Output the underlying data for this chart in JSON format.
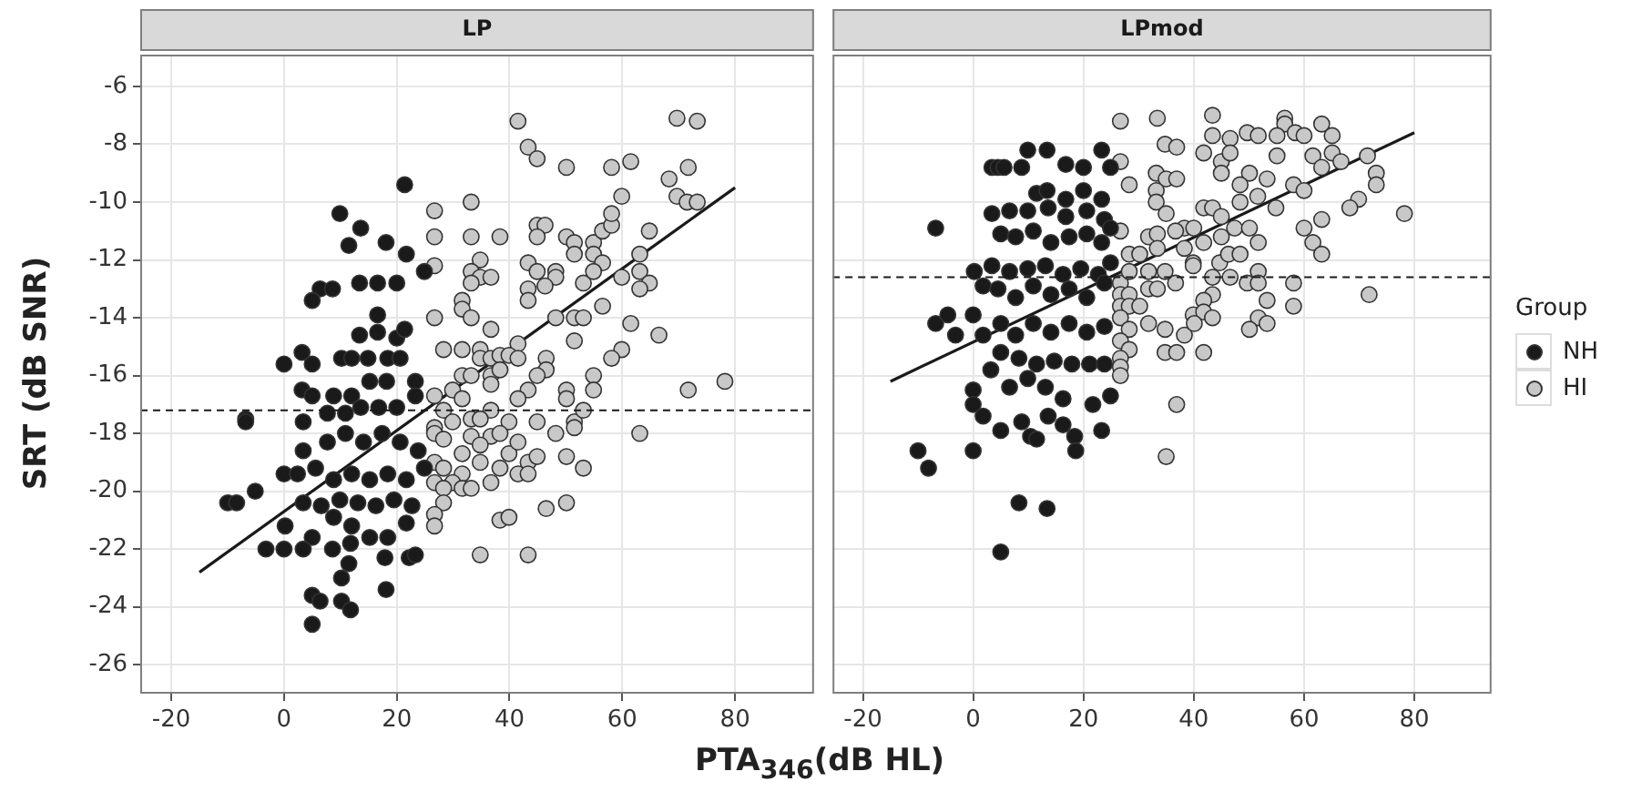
{
  "chart_data": [
    {
      "type": "scatter",
      "title": "LP",
      "xlabel": "PTA$_{346}$(dB HL)",
      "ylabel": "SRT (dB SNR)",
      "xlim": [
        -25.5,
        94
      ],
      "ylim": [
        -27,
        -4.9
      ],
      "xticks": [
        -20,
        0,
        20,
        40,
        60,
        80
      ],
      "yticks": [
        -26,
        -24,
        -22,
        -20,
        -18,
        -16,
        -14,
        -12,
        -10,
        -8,
        -6
      ],
      "grid": true,
      "marker": "circle",
      "legend": "right",
      "legend_title": "Group",
      "series": [
        {
          "name": "NH",
          "color": "#1a1a1a",
          "x": [
            21.4,
            9.9,
            13.6,
            11.5,
            18.1,
            21.7,
            24.9,
            6.4,
            8.6,
            5.0,
            13.4,
            16.6,
            20.0,
            16.6,
            13.4,
            16.6,
            20.0,
            21.4,
            0,
            3.2,
            5.0,
            10.2,
            12.0,
            14.9,
            18.4,
            20.6,
            3.2,
            5.0,
            8.8,
            12.0,
            15.2,
            18.2,
            23.3,
            -6.8,
            -6.8,
            3.4,
            7.7,
            10.9,
            13.6,
            16.8,
            20.0,
            23.3,
            3.4,
            7.7,
            10.9,
            14.1,
            17.4,
            20.6,
            23.8,
            0,
            2.4,
            5.6,
            8.8,
            12.0,
            15.2,
            18.4,
            21.7,
            24.9,
            -5.1,
            -10.0,
            -8.4,
            3.4,
            6.6,
            9.9,
            13.1,
            16.3,
            19.5,
            22.7,
            0.2,
            5.0,
            8.8,
            12.0,
            15.2,
            18.4,
            21.7,
            -3.2,
            0,
            3.4,
            8.6,
            11.8,
            11.5,
            17.9,
            22.2,
            23.3,
            10.2,
            18.1,
            5.0,
            6.4,
            10.2,
            11.8,
            5.0
          ],
          "values": [
            -9.4,
            -10.4,
            -10.9,
            -11.5,
            -11.4,
            -11.8,
            -12.4,
            -13.0,
            -13.0,
            -13.4,
            -12.8,
            -12.8,
            -12.8,
            -13.9,
            -14.6,
            -14.5,
            -14.7,
            -14.4,
            -15.6,
            -15.2,
            -15.6,
            -15.4,
            -15.4,
            -15.4,
            -15.4,
            -15.4,
            -16.5,
            -16.7,
            -16.7,
            -16.7,
            -16.2,
            -16.2,
            -16.2,
            -17.5,
            -17.6,
            -17.6,
            -17.3,
            -17.3,
            -17.1,
            -17.1,
            -17.1,
            -16.7,
            -18.6,
            -18.3,
            -18.0,
            -18.3,
            -18.0,
            -18.3,
            -18.6,
            -19.4,
            -19.4,
            -19.2,
            -19.6,
            -19.4,
            -19.6,
            -19.4,
            -19.6,
            -19.2,
            -20.0,
            -20.4,
            -20.4,
            -20.4,
            -20.5,
            -20.3,
            -20.4,
            -20.5,
            -20.3,
            -20.5,
            -21.2,
            -21.6,
            -20.9,
            -21.2,
            -21.6,
            -21.6,
            -21.1,
            -22.0,
            -22.0,
            -22.0,
            -22.0,
            -21.8,
            -22.5,
            -22.3,
            -22.3,
            -22.2,
            -23.0,
            -23.4,
            -23.6,
            -23.8,
            -23.8,
            -24.1,
            -24.6
          ]
        },
        {
          "name": "HI",
          "color": "#c8c8c8",
          "x": [
            41.5,
            43.3,
            44.9,
            50.1,
            58.1,
            61.5,
            69.7,
            73.3,
            71.7,
            68.3,
            69.7,
            71.5,
            73.3,
            59.9,
            26.7,
            33.2,
            26.7,
            33.2,
            38.3,
            44.9,
            46.3,
            44.9,
            50.1,
            51.5,
            54.9,
            56.5,
            58.1,
            58.1,
            64.8,
            51.5,
            54.9,
            56.5,
            63.1,
            26.7,
            34.8,
            33.2,
            34.8,
            36.7,
            33.2,
            43.3,
            44.9,
            48.2,
            48.2,
            46.3,
            43.3,
            43.3,
            53.1,
            54.9,
            59.9,
            63.1,
            64.8,
            63.1,
            31.6,
            31.6,
            33.2,
            26.7,
            48.2,
            51.5,
            53.1,
            56.5,
            61.5,
            66.5,
            36.7,
            41.5,
            51.5,
            28.3,
            31.6,
            34.8,
            34.8,
            36.7,
            38.3,
            39.9,
            41.5,
            46.5,
            46.5,
            59.9,
            58.1,
            31.6,
            33.2,
            36.7,
            38.3,
            36.7,
            44.9,
            43.3,
            41.5,
            50.1,
            50.1,
            54.9,
            54.9,
            71.7,
            78.2,
            26.7,
            29.9,
            28.3,
            31.6,
            36.7,
            33.2,
            34.8,
            26.7,
            29.9,
            39.9,
            44.9,
            51.5,
            53.1,
            51.5,
            63.1,
            26.7,
            28.3,
            33.2,
            36.7,
            38.3,
            48.2,
            31.6,
            34.8,
            39.9,
            41.5,
            43.3,
            44.9,
            50.1,
            53.1,
            26.7,
            28.3,
            31.6,
            34.8,
            38.3,
            41.5,
            43.3,
            26.7,
            29.9,
            28.3,
            31.6,
            33.2,
            36.7,
            28.3,
            26.7,
            26.7,
            38.3,
            39.9,
            46.5,
            50.1,
            34.8,
            43.3
          ],
          "values": [
            -7.2,
            -8.1,
            -8.5,
            -8.8,
            -8.8,
            -8.6,
            -7.1,
            -7.2,
            -8.8,
            -9.2,
            -9.8,
            -10.0,
            -10.0,
            -9.8,
            -10.3,
            -10.0,
            -11.2,
            -11.2,
            -11.2,
            -10.8,
            -10.8,
            -11.2,
            -11.2,
            -11.4,
            -11.4,
            -11.0,
            -10.8,
            -10.4,
            -11.0,
            -11.8,
            -11.8,
            -12.1,
            -11.8,
            -12.2,
            -12.0,
            -12.4,
            -12.6,
            -12.6,
            -12.8,
            -12.1,
            -12.4,
            -12.4,
            -12.6,
            -12.9,
            -13.0,
            -13.4,
            -12.8,
            -12.4,
            -12.6,
            -12.4,
            -12.8,
            -13.0,
            -13.4,
            -13.7,
            -14.0,
            -14.0,
            -14.0,
            -14.0,
            -14.0,
            -13.6,
            -14.2,
            -14.6,
            -14.4,
            -14.9,
            -14.8,
            -15.1,
            -15.1,
            -15.1,
            -15.4,
            -15.4,
            -15.3,
            -15.3,
            -15.4,
            -15.4,
            -15.8,
            -15.1,
            -15.4,
            -16.0,
            -16.0,
            -16.0,
            -15.8,
            -16.3,
            -16.0,
            -16.5,
            -16.8,
            -16.5,
            -16.8,
            -16.0,
            -16.5,
            -16.5,
            -16.2,
            -16.7,
            -16.5,
            -17.2,
            -16.8,
            -17.2,
            -17.5,
            -17.5,
            -17.8,
            -17.6,
            -17.6,
            -17.6,
            -17.6,
            -17.2,
            -17.8,
            -18.0,
            -18.0,
            -18.2,
            -18.1,
            -18.1,
            -18.0,
            -18.0,
            -18.7,
            -18.4,
            -18.7,
            -18.3,
            -19.0,
            -18.8,
            -18.8,
            -19.2,
            -19.0,
            -19.2,
            -19.4,
            -19.0,
            -19.2,
            -19.4,
            -19.4,
            -19.7,
            -19.7,
            -19.9,
            -19.9,
            -19.9,
            -19.7,
            -20.4,
            -20.8,
            -21.2,
            -21.0,
            -20.9,
            -20.6,
            -20.4,
            -22.2,
            -22.2
          ]
        },
        {
          "type": "line",
          "marker": "none",
          "color": "#1a1a1a",
          "x": [
            -15,
            80
          ],
          "values": [
            -22.8,
            -9.5
          ]
        }
      ],
      "ref_lines": [
        {
          "axis": "y",
          "value": -17.2,
          "line_style": "dashed",
          "color": "#1a1a1a"
        }
      ]
    },
    {
      "type": "scatter",
      "title": "LPmod",
      "xlim": [
        -25.5,
        94
      ],
      "ylim": [
        -27,
        -4.9
      ],
      "xticks": [
        -20,
        0,
        20,
        40,
        60,
        80
      ],
      "yticks": [
        -26,
        -24,
        -22,
        -20,
        -18,
        -16,
        -14,
        -12,
        -10,
        -8,
        -6
      ],
      "tick_labels": "x",
      "grid": true,
      "marker": "circle",
      "series": [
        {
          "color": "#1a1a1a",
          "x": [
            -6.8,
            3.4,
            4.5,
            5.6,
            8.8,
            9.9,
            13.4,
            16.8,
            20.0,
            23.3,
            24.9,
            11.5,
            13.4,
            16.8,
            20.0,
            23.3,
            3.4,
            6.6,
            9.9,
            13.6,
            16.8,
            20.6,
            23.8,
            5.0,
            7.7,
            10.9,
            14.1,
            17.4,
            20.6,
            23.3,
            24.9,
            0.2,
            3.4,
            6.6,
            9.9,
            13.1,
            16.3,
            19.5,
            22.7,
            24.9,
            1.8,
            4.5,
            7.7,
            10.9,
            14.1,
            17.4,
            20.6,
            23.8,
            5.0,
            7.7,
            10.9,
            14.1,
            17.4,
            20.6,
            23.8,
            5.0,
            8.3,
            11.5,
            14.7,
            17.9,
            21.1,
            23.8,
            3.2,
            6.6,
            9.9,
            13.1,
            16.3,
            21.7,
            24.9,
            0,
            0,
            1.8,
            5.0,
            8.8,
            10.4,
            11.5,
            13.6,
            16.3,
            18.4,
            18.6,
            23.3,
            -6.8,
            -4.6,
            -3.2,
            0,
            1.8,
            -10.0,
            -8.1,
            0,
            8.3,
            13.4,
            5.0
          ],
          "values": [
            -10.9,
            -8.8,
            -8.8,
            -8.8,
            -8.8,
            -8.2,
            -8.2,
            -8.7,
            -8.8,
            -8.2,
            -8.8,
            -9.7,
            -9.6,
            -9.9,
            -9.6,
            -9.9,
            -10.4,
            -10.3,
            -10.3,
            -10.2,
            -10.5,
            -10.3,
            -10.6,
            -11.1,
            -11.2,
            -11.0,
            -11.4,
            -11.2,
            -11.1,
            -11.4,
            -10.9,
            -12.4,
            -12.2,
            -12.4,
            -12.3,
            -12.2,
            -12.5,
            -12.3,
            -12.5,
            -12.1,
            -12.9,
            -13.0,
            -13.3,
            -12.9,
            -13.2,
            -13.0,
            -13.3,
            -12.8,
            -14.2,
            -14.6,
            -14.2,
            -14.5,
            -14.2,
            -14.5,
            -14.3,
            -15.2,
            -15.4,
            -15.6,
            -15.5,
            -15.6,
            -15.6,
            -15.6,
            -15.8,
            -16.4,
            -16.1,
            -16.4,
            -16.8,
            -17.0,
            -16.7,
            -16.5,
            -17.0,
            -17.4,
            -17.9,
            -17.6,
            -18.1,
            -18.2,
            -17.4,
            -17.7,
            -18.1,
            -18.6,
            -17.9,
            -14.2,
            -13.9,
            -14.6,
            -13.9,
            -14.6,
            -18.6,
            -19.2,
            -18.6,
            -20.4,
            -20.6,
            -22.1
          ]
        },
        {
          "color": "#c8c8c8",
          "x": [
            26.7,
            33.4,
            43.4,
            56.5,
            56.5,
            63.2,
            65.1,
            49.7,
            51.7,
            55.1,
            58.4,
            60.0,
            34.8,
            36.9,
            41.8,
            43.4,
            46.6,
            45.0,
            46.6,
            55.1,
            61.6,
            63.2,
            65.1,
            66.7,
            71.5,
            73.1,
            26.7,
            28.3,
            33.2,
            35.0,
            36.9,
            45.0,
            50.1,
            53.3,
            48.4,
            58.1,
            60.0,
            73.1,
            33.2,
            33.2,
            41.8,
            43.4,
            48.4,
            51.6,
            54.9,
            69.9,
            68.3,
            78.2,
            35.0,
            38.3,
            40.0,
            45.0,
            47.4,
            50.1,
            26.7,
            31.8,
            33.4,
            36.7,
            41.8,
            45.0,
            51.7,
            60.0,
            63.2,
            61.6,
            63.2,
            28.3,
            30.2,
            33.4,
            38.3,
            39.9,
            44.7,
            46.3,
            48.4,
            26.7,
            28.3,
            31.8,
            34.8,
            36.7,
            39.9,
            43.4,
            46.6,
            49.7,
            51.7,
            51.7,
            58.1,
            71.8,
            26.7,
            28.3,
            31.8,
            33.4,
            43.4,
            26.7,
            28.3,
            30.2,
            41.8,
            53.3,
            58.1,
            26.7,
            31.8,
            39.9,
            41.8,
            43.4,
            51.7,
            53.3,
            50.1,
            28.3,
            26.7,
            34.8,
            38.3,
            40.1,
            28.3,
            26.7,
            26.7,
            34.8,
            36.9,
            41.8,
            26.7,
            36.9,
            35.0
          ],
          "values": [
            -7.2,
            -7.1,
            -7.0,
            -7.1,
            -7.3,
            -7.3,
            -7.7,
            -7.6,
            -7.7,
            -7.7,
            -7.6,
            -7.7,
            -8.0,
            -8.1,
            -8.3,
            -7.7,
            -7.8,
            -8.6,
            -8.3,
            -8.4,
            -8.4,
            -8.8,
            -8.3,
            -8.6,
            -8.4,
            -9.0,
            -8.6,
            -9.4,
            -9.0,
            -9.2,
            -9.2,
            -9.0,
            -9.0,
            -9.2,
            -9.4,
            -9.4,
            -9.6,
            -9.4,
            -9.6,
            -10.0,
            -10.2,
            -10.2,
            -10.0,
            -9.8,
            -10.2,
            -9.9,
            -10.2,
            -10.4,
            -10.4,
            -10.9,
            -10.9,
            -10.5,
            -10.9,
            -10.9,
            -11.0,
            -11.2,
            -11.1,
            -11.0,
            -11.4,
            -11.2,
            -11.4,
            -10.9,
            -10.6,
            -11.4,
            -11.8,
            -11.8,
            -11.8,
            -11.6,
            -11.6,
            -12.1,
            -12.1,
            -11.8,
            -11.8,
            -12.8,
            -12.4,
            -12.4,
            -12.4,
            -12.8,
            -12.2,
            -12.6,
            -12.6,
            -12.8,
            -12.4,
            -12.8,
            -12.8,
            -13.2,
            -13.2,
            -13.2,
            -13.0,
            -13.0,
            -13.2,
            -13.6,
            -13.6,
            -13.6,
            -13.4,
            -13.4,
            -13.6,
            -14.0,
            -14.2,
            -13.9,
            -13.8,
            -14.0,
            -14.0,
            -14.2,
            -14.4,
            -14.4,
            -14.8,
            -14.4,
            -14.6,
            -14.2,
            -15.1,
            -15.4,
            -15.7,
            -15.2,
            -15.2,
            -15.2,
            -16.0,
            -17.0,
            -18.8
          ]
        },
        {
          "type": "line",
          "marker": "none",
          "color": "#1a1a1a",
          "x": [
            -15,
            80
          ],
          "values": [
            -16.2,
            -7.6
          ]
        }
      ],
      "ref_lines": [
        {
          "axis": "y",
          "value": -12.6,
          "line_style": "dashed",
          "color": "#1a1a1a"
        }
      ]
    }
  ]
}
